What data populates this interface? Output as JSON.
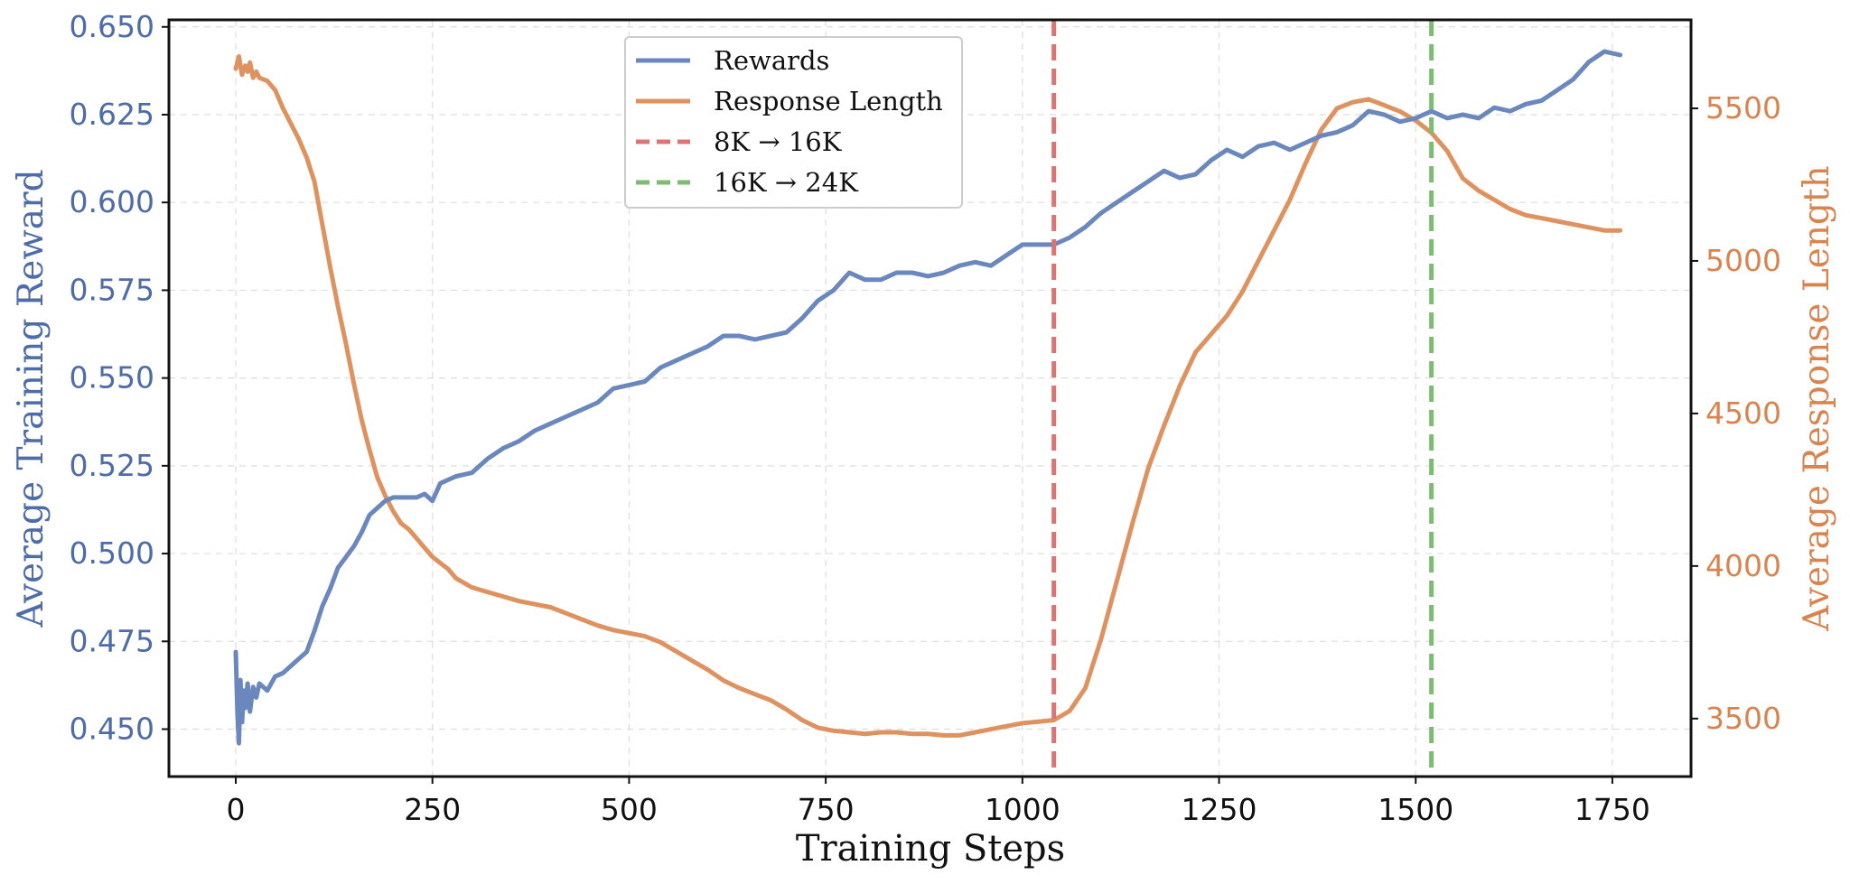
{
  "chart_data": {
    "type": "line",
    "xlabel": "Training Steps",
    "ylabel": "Average Training Reward",
    "y2label": "Average Response Length",
    "xlim": [
      -85,
      1850
    ],
    "ylim": [
      0.4365,
      0.652
    ],
    "y2lim": [
      3310,
      5790
    ],
    "xticks": [
      "0",
      "250",
      "500",
      "750",
      "1000",
      "1250",
      "1500",
      "1750"
    ],
    "xtick_values": [
      0,
      250,
      500,
      750,
      1000,
      1250,
      1500,
      1750
    ],
    "yticks": [
      "0.450",
      "0.475",
      "0.500",
      "0.525",
      "0.550",
      "0.575",
      "0.600",
      "0.625",
      "0.650"
    ],
    "ytick_values": [
      0.45,
      0.475,
      0.5,
      0.525,
      0.55,
      0.575,
      0.6,
      0.625,
      0.65
    ],
    "y2ticks": [
      "3500",
      "4000",
      "4500",
      "5000",
      "5500"
    ],
    "y2tick_values": [
      3500,
      4000,
      4500,
      5000,
      5500
    ],
    "grid": true,
    "legend_position": "top-center",
    "series": [
      {
        "name": "Rewards",
        "axis": "left",
        "color": "#6a88bd",
        "x": [
          0,
          2,
          4,
          6,
          8,
          10,
          12,
          15,
          18,
          22,
          26,
          30,
          40,
          50,
          60,
          70,
          80,
          90,
          100,
          110,
          120,
          130,
          140,
          150,
          160,
          170,
          180,
          190,
          200,
          210,
          220,
          230,
          240,
          250,
          260,
          270,
          280,
          300,
          320,
          340,
          360,
          380,
          400,
          420,
          440,
          460,
          480,
          500,
          520,
          540,
          560,
          580,
          600,
          620,
          640,
          660,
          680,
          700,
          720,
          740,
          760,
          780,
          800,
          820,
          840,
          860,
          880,
          900,
          920,
          940,
          960,
          980,
          1000,
          1020,
          1040,
          1060,
          1080,
          1100,
          1120,
          1140,
          1160,
          1180,
          1200,
          1220,
          1240,
          1260,
          1280,
          1300,
          1320,
          1340,
          1360,
          1380,
          1400,
          1420,
          1440,
          1460,
          1480,
          1500,
          1520,
          1540,
          1560,
          1580,
          1600,
          1620,
          1640,
          1660,
          1680,
          1700,
          1720,
          1740,
          1760
        ],
        "values": [
          0.472,
          0.455,
          0.446,
          0.464,
          0.452,
          0.461,
          0.456,
          0.463,
          0.455,
          0.462,
          0.459,
          0.463,
          0.461,
          0.465,
          0.466,
          0.468,
          0.47,
          0.472,
          0.478,
          0.485,
          0.49,
          0.496,
          0.499,
          0.502,
          0.506,
          0.511,
          0.513,
          0.515,
          0.516,
          0.516,
          0.516,
          0.516,
          0.517,
          0.515,
          0.52,
          0.521,
          0.522,
          0.523,
          0.527,
          0.53,
          0.532,
          0.535,
          0.537,
          0.539,
          0.541,
          0.543,
          0.547,
          0.548,
          0.549,
          0.553,
          0.555,
          0.557,
          0.559,
          0.562,
          0.562,
          0.561,
          0.562,
          0.563,
          0.567,
          0.572,
          0.575,
          0.58,
          0.578,
          0.578,
          0.58,
          0.58,
          0.579,
          0.58,
          0.582,
          0.583,
          0.582,
          0.585,
          0.588,
          0.588,
          0.588,
          0.59,
          0.593,
          0.597,
          0.6,
          0.603,
          0.606,
          0.609,
          0.607,
          0.608,
          0.612,
          0.615,
          0.613,
          0.616,
          0.617,
          0.615,
          0.617,
          0.619,
          0.62,
          0.622,
          0.626,
          0.625,
          0.623,
          0.624,
          0.626,
          0.624,
          0.625,
          0.624,
          0.627,
          0.626,
          0.628,
          0.629,
          0.632,
          0.635,
          0.64,
          0.643,
          0.642
        ]
      },
      {
        "name": "Response Length",
        "axis": "right",
        "color": "#de9260",
        "x": [
          0,
          2,
          4,
          6,
          8,
          10,
          12,
          15,
          18,
          22,
          26,
          30,
          40,
          50,
          60,
          70,
          80,
          90,
          100,
          110,
          120,
          130,
          140,
          150,
          160,
          170,
          180,
          190,
          200,
          210,
          220,
          230,
          240,
          250,
          260,
          270,
          280,
          300,
          320,
          340,
          360,
          380,
          400,
          420,
          440,
          460,
          480,
          500,
          520,
          540,
          560,
          580,
          600,
          620,
          640,
          660,
          680,
          700,
          720,
          740,
          760,
          780,
          800,
          820,
          840,
          860,
          880,
          900,
          920,
          940,
          960,
          980,
          1000,
          1020,
          1040,
          1060,
          1080,
          1100,
          1120,
          1140,
          1160,
          1180,
          1200,
          1220,
          1240,
          1260,
          1280,
          1300,
          1320,
          1340,
          1360,
          1380,
          1400,
          1420,
          1440,
          1460,
          1480,
          1500,
          1520,
          1540,
          1560,
          1580,
          1600,
          1620,
          1640,
          1660,
          1680,
          1700,
          1720,
          1740,
          1760
        ],
        "values": [
          5630,
          5650,
          5670,
          5640,
          5610,
          5630,
          5640,
          5620,
          5650,
          5600,
          5620,
          5600,
          5590,
          5560,
          5500,
          5450,
          5400,
          5340,
          5260,
          5120,
          4980,
          4850,
          4730,
          4600,
          4480,
          4380,
          4290,
          4230,
          4180,
          4140,
          4120,
          4090,
          4060,
          4030,
          4010,
          3990,
          3960,
          3930,
          3915,
          3900,
          3885,
          3875,
          3865,
          3845,
          3825,
          3805,
          3790,
          3780,
          3770,
          3750,
          3720,
          3690,
          3660,
          3625,
          3600,
          3580,
          3560,
          3530,
          3495,
          3470,
          3460,
          3455,
          3450,
          3455,
          3455,
          3450,
          3450,
          3445,
          3445,
          3455,
          3465,
          3475,
          3485,
          3490,
          3495,
          3525,
          3600,
          3760,
          3950,
          4140,
          4320,
          4460,
          4590,
          4700,
          4760,
          4820,
          4900,
          5000,
          5100,
          5200,
          5320,
          5430,
          5500,
          5520,
          5530,
          5510,
          5490,
          5460,
          5420,
          5360,
          5270,
          5230,
          5200,
          5170,
          5150,
          5140,
          5130,
          5120,
          5110,
          5100,
          5100
        ]
      }
    ],
    "vlines": [
      {
        "name": "8K → 16K",
        "x": 1040,
        "color": "#dc7474"
      },
      {
        "name": "16K → 24K",
        "x": 1520,
        "color": "#7cbd72"
      }
    ],
    "left_color": "#4d6ca8",
    "right_color": "#d9844f"
  }
}
